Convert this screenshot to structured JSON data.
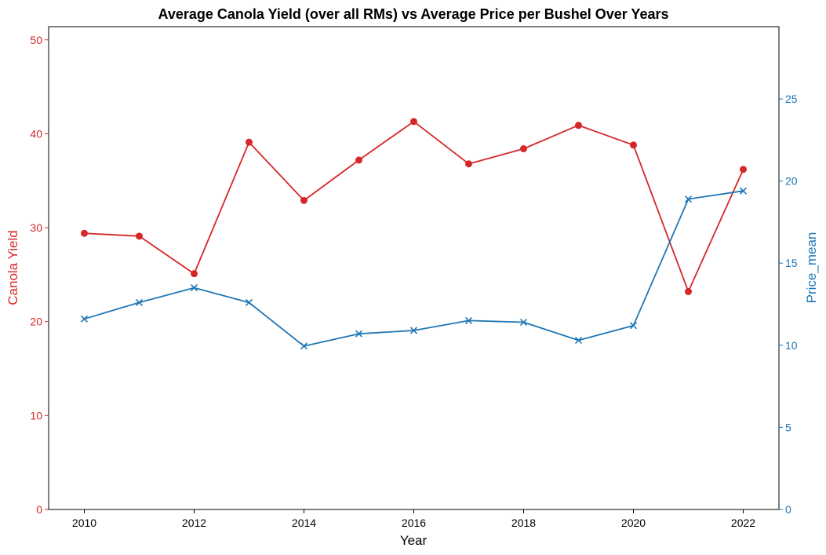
{
  "chart_data": {
    "type": "line",
    "title": "Average Canola Yield (over all RMs) vs Average Price per Bushel Over Years",
    "xlabel": "Year",
    "x": [
      2010,
      2011,
      2012,
      2013,
      2014,
      2015,
      2016,
      2017,
      2018,
      2019,
      2020,
      2021,
      2022
    ],
    "x_ticks": [
      "2010",
      "2012",
      "2014",
      "2016",
      "2018",
      "2020",
      "2022"
    ],
    "grid": false,
    "series": [
      {
        "name": "Canola Yield",
        "axis": "left",
        "color": "#d62728",
        "marker": "circle",
        "values": [
          29.4,
          29.1,
          25.1,
          39.1,
          32.9,
          37.2,
          41.3,
          36.8,
          38.4,
          40.9,
          38.8,
          23.2,
          36.2
        ]
      },
      {
        "name": "Price_mean",
        "axis": "right",
        "color": "#1f77b4",
        "marker": "x",
        "values": [
          11.6,
          12.6,
          13.5,
          12.6,
          9.95,
          10.7,
          10.9,
          11.5,
          11.4,
          10.3,
          11.2,
          18.9,
          19.4
        ]
      }
    ],
    "y_left": {
      "label": "Canola Yield",
      "color": "#d62728",
      "ylim": [
        0,
        51.4
      ],
      "ticks": [
        "0",
        "10",
        "20",
        "30",
        "40",
        "50"
      ]
    },
    "y_right": {
      "label": "Price_mean",
      "color": "#1f77b4",
      "ylim": [
        0,
        29.4
      ],
      "ticks": [
        "0",
        "5",
        "10",
        "15",
        "20",
        "25"
      ]
    }
  }
}
